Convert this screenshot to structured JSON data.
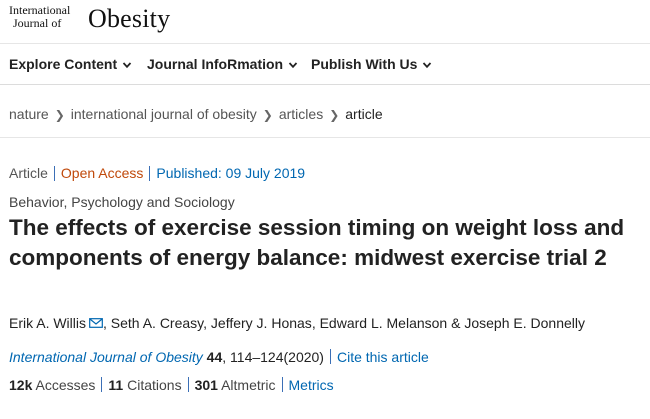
{
  "logo": {
    "line1": "International",
    "line2": "Journal of",
    "big": "Obesity"
  },
  "nav": [
    {
      "label": "Explore Content",
      "icon": "chevron-down-icon"
    },
    {
      "label": "Journal InfoRmation",
      "icon": "chevron-down-icon"
    },
    {
      "label": "Publish With Us",
      "icon": "chevron-down-icon"
    }
  ],
  "breadcrumb": [
    "nature",
    "international journal of obesity",
    "articles",
    "article"
  ],
  "article": {
    "type": "Article",
    "access": "Open Access",
    "published": "Published: 09 July 2019",
    "subject": "Behavior, Psychology and Sociology",
    "title": "The effects of exercise session timing on weight loss and components of energy balance: midwest exercise trial 2",
    "authors": [
      "Erik A. Willis",
      "Seth A. Creasy",
      "Jeffery J. Honas",
      "Edward L. Melanson",
      "Joseph E. Donnelly"
    ],
    "author_separators": [
      ",",
      ",",
      ",",
      "&"
    ],
    "journal": "International Journal of Obesity",
    "volume": "44",
    "pages_year": ", 114–124(2020)",
    "cite_label": "Cite this article"
  },
  "metrics": {
    "accesses_count": "12k",
    "accesses_label": "Accesses",
    "citations_count": "11",
    "citations_label": "Citations",
    "altmetric_count": "301",
    "altmetric_label": "Altmetric",
    "metrics_link": "Metrics"
  },
  "colors": {
    "link": "#0067b1",
    "open_access": "#c0490b",
    "separator": "#3b6fb6"
  }
}
